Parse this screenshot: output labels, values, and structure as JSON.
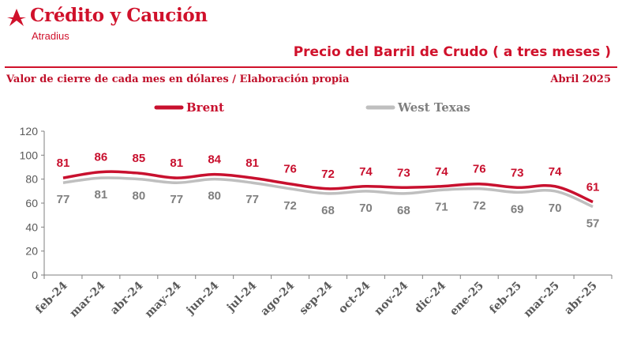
{
  "brand": {
    "name": "Crédito y Caución",
    "sub": "Atradius"
  },
  "header": {
    "title": "Precio del Barril de Crudo ( a tres meses )",
    "subtitle": "Valor de cierre de cada mes en dólares / Elaboración propia",
    "date": "Abril  2025"
  },
  "colors": {
    "brand_red": "#d0112b",
    "brent": "#c8102e",
    "wti": "#bfbfbf",
    "wti_label": "#7f7f7f",
    "axis_text": "#595959"
  },
  "chart_data": {
    "type": "line",
    "title": "Precio del Barril de Crudo ( a tres meses )",
    "xlabel": "",
    "ylabel": "",
    "x": [
      "feb-24",
      "mar-24",
      "abr-24",
      "may-24",
      "jun-24",
      "jul-24",
      "ago-24",
      "sep-24",
      "oct-24",
      "nov-24",
      "dic-24",
      "ene-25",
      "feb-25",
      "mar-25",
      "abr-25"
    ],
    "series": [
      {
        "name": "Brent",
        "values": [
          81,
          86,
          85,
          81,
          84,
          81,
          76,
          72,
          74,
          73,
          74,
          76,
          73,
          74,
          61
        ]
      },
      {
        "name": "West Texas",
        "values": [
          77,
          81,
          80,
          77,
          80,
          77,
          72,
          68,
          70,
          68,
          71,
          72,
          69,
          70,
          57
        ]
      }
    ],
    "ylim": [
      0,
      120
    ],
    "yticks": [
      0,
      20,
      40,
      60,
      80,
      100,
      120
    ],
    "grid": false,
    "legend": "top"
  }
}
